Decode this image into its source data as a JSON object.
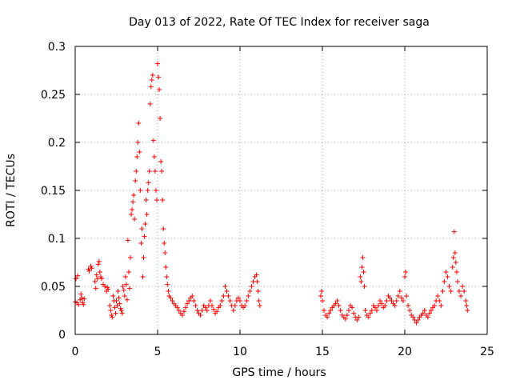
{
  "chart_data": {
    "type": "scatter",
    "title": "Day 013 of 2022, Rate Of TEC Index for receiver saga",
    "xlabel": "GPS time / hours",
    "ylabel": "ROTI / TECUs",
    "xlim": [
      0,
      25
    ],
    "ylim": [
      0,
      0.3
    ],
    "xticks": [
      0,
      5,
      10,
      15,
      20,
      25
    ],
    "xtick_labels": [
      "0",
      "5",
      "10",
      "15",
      "20",
      "25"
    ],
    "yticks": [
      0,
      0.05,
      0.1,
      0.15,
      0.2,
      0.25,
      0.3
    ],
    "ytick_labels": [
      "0",
      "0.05",
      "0.1",
      "0.15",
      "0.2",
      "0.25",
      "0.3"
    ],
    "grid": true,
    "marker": "plus",
    "color": "#ff0000",
    "series": [
      {
        "name": "ROTI",
        "points": [
          [
            0.0,
            0.034
          ],
          [
            0.05,
            0.058
          ],
          [
            0.1,
            0.033
          ],
          [
            0.15,
            0.061
          ],
          [
            0.2,
            0.031
          ],
          [
            0.3,
            0.036
          ],
          [
            0.35,
            0.042
          ],
          [
            0.4,
            0.038
          ],
          [
            0.45,
            0.033
          ],
          [
            0.5,
            0.031
          ],
          [
            0.55,
            0.037
          ],
          [
            0.8,
            0.068
          ],
          [
            0.85,
            0.066
          ],
          [
            0.95,
            0.071
          ],
          [
            1.0,
            0.069
          ],
          [
            1.2,
            0.055
          ],
          [
            1.25,
            0.048
          ],
          [
            1.3,
            0.062
          ],
          [
            1.35,
            0.058
          ],
          [
            1.4,
            0.073
          ],
          [
            1.45,
            0.076
          ],
          [
            1.5,
            0.065
          ],
          [
            1.55,
            0.06
          ],
          [
            1.6,
            0.058
          ],
          [
            1.7,
            0.052
          ],
          [
            1.8,
            0.05
          ],
          [
            1.9,
            0.045
          ],
          [
            1.95,
            0.049
          ],
          [
            2.0,
            0.047
          ],
          [
            2.1,
            0.03
          ],
          [
            2.15,
            0.025
          ],
          [
            2.2,
            0.02
          ],
          [
            2.25,
            0.018
          ],
          [
            2.3,
            0.04
          ],
          [
            2.35,
            0.035
          ],
          [
            2.4,
            0.028
          ],
          [
            2.45,
            0.022
          ],
          [
            2.5,
            0.035
          ],
          [
            2.55,
            0.03
          ],
          [
            2.6,
            0.045
          ],
          [
            2.65,
            0.038
          ],
          [
            2.7,
            0.032
          ],
          [
            2.75,
            0.027
          ],
          [
            2.8,
            0.025
          ],
          [
            2.85,
            0.022
          ],
          [
            2.9,
            0.05
          ],
          [
            2.95,
            0.046
          ],
          [
            3.0,
            0.04
          ],
          [
            3.05,
            0.06
          ],
          [
            3.1,
            0.052
          ],
          [
            3.15,
            0.036
          ],
          [
            3.2,
            0.098
          ],
          [
            3.25,
            0.065
          ],
          [
            3.3,
            0.048
          ],
          [
            3.35,
            0.08
          ],
          [
            3.4,
            0.125
          ],
          [
            3.45,
            0.13
          ],
          [
            3.5,
            0.138
          ],
          [
            3.55,
            0.145
          ],
          [
            3.6,
            0.12
          ],
          [
            3.65,
            0.16
          ],
          [
            3.7,
            0.17
          ],
          [
            3.75,
            0.185
          ],
          [
            3.8,
            0.2
          ],
          [
            3.85,
            0.22
          ],
          [
            3.9,
            0.19
          ],
          [
            3.95,
            0.15
          ],
          [
            4.0,
            0.095
          ],
          [
            4.05,
            0.11
          ],
          [
            4.1,
            0.06
          ],
          [
            4.15,
            0.08
          ],
          [
            4.2,
            0.102
          ],
          [
            4.25,
            0.115
          ],
          [
            4.3,
            0.14
          ],
          [
            4.35,
            0.125
          ],
          [
            4.4,
            0.15
          ],
          [
            4.45,
            0.158
          ],
          [
            4.5,
            0.17
          ],
          [
            4.55,
            0.24
          ],
          [
            4.6,
            0.258
          ],
          [
            4.65,
            0.265
          ],
          [
            4.7,
            0.27
          ],
          [
            4.75,
            0.202
          ],
          [
            4.8,
            0.185
          ],
          [
            4.85,
            0.17
          ],
          [
            4.9,
            0.15
          ],
          [
            4.95,
            0.14
          ],
          [
            5.0,
            0.282
          ],
          [
            5.05,
            0.268
          ],
          [
            5.1,
            0.255
          ],
          [
            5.15,
            0.225
          ],
          [
            5.2,
            0.18
          ],
          [
            5.25,
            0.17
          ],
          [
            5.3,
            0.14
          ],
          [
            5.35,
            0.11
          ],
          [
            5.4,
            0.095
          ],
          [
            5.45,
            0.085
          ],
          [
            5.5,
            0.07
          ],
          [
            5.55,
            0.06
          ],
          [
            5.6,
            0.052
          ],
          [
            5.65,
            0.045
          ],
          [
            5.7,
            0.04
          ],
          [
            5.8,
            0.038
          ],
          [
            5.9,
            0.035
          ],
          [
            6.0,
            0.032
          ],
          [
            6.1,
            0.03
          ],
          [
            6.2,
            0.028
          ],
          [
            6.3,
            0.025
          ],
          [
            6.4,
            0.022
          ],
          [
            6.5,
            0.02
          ],
          [
            6.6,
            0.024
          ],
          [
            6.7,
            0.028
          ],
          [
            6.8,
            0.032
          ],
          [
            6.9,
            0.035
          ],
          [
            7.0,
            0.038
          ],
          [
            7.1,
            0.04
          ],
          [
            7.2,
            0.035
          ],
          [
            7.3,
            0.03
          ],
          [
            7.4,
            0.025
          ],
          [
            7.5,
            0.022
          ],
          [
            7.6,
            0.02
          ],
          [
            7.7,
            0.025
          ],
          [
            7.8,
            0.03
          ],
          [
            7.9,
            0.028
          ],
          [
            8.0,
            0.025
          ],
          [
            8.1,
            0.03
          ],
          [
            8.2,
            0.035
          ],
          [
            8.3,
            0.03
          ],
          [
            8.4,
            0.026
          ],
          [
            8.5,
            0.022
          ],
          [
            8.6,
            0.024
          ],
          [
            8.7,
            0.028
          ],
          [
            8.8,
            0.03
          ],
          [
            8.9,
            0.035
          ],
          [
            9.0,
            0.04
          ],
          [
            9.1,
            0.05
          ],
          [
            9.2,
            0.045
          ],
          [
            9.3,
            0.04
          ],
          [
            9.4,
            0.035
          ],
          [
            9.5,
            0.03
          ],
          [
            9.6,
            0.025
          ],
          [
            9.7,
            0.03
          ],
          [
            9.8,
            0.035
          ],
          [
            9.9,
            0.038
          ],
          [
            10.0,
            0.035
          ],
          [
            10.1,
            0.03
          ],
          [
            10.2,
            0.028
          ],
          [
            10.3,
            0.03
          ],
          [
            10.4,
            0.035
          ],
          [
            10.5,
            0.04
          ],
          [
            10.6,
            0.045
          ],
          [
            10.7,
            0.05
          ],
          [
            10.8,
            0.055
          ],
          [
            10.9,
            0.06
          ],
          [
            11.0,
            0.062
          ],
          [
            11.05,
            0.055
          ],
          [
            11.1,
            0.045
          ],
          [
            11.15,
            0.035
          ],
          [
            11.2,
            0.03
          ],
          [
            14.9,
            0.04
          ],
          [
            14.95,
            0.045
          ],
          [
            15.0,
            0.035
          ],
          [
            15.1,
            0.025
          ],
          [
            15.2,
            0.02
          ],
          [
            15.3,
            0.018
          ],
          [
            15.4,
            0.022
          ],
          [
            15.5,
            0.025
          ],
          [
            15.6,
            0.028
          ],
          [
            15.7,
            0.03
          ],
          [
            15.8,
            0.032
          ],
          [
            15.9,
            0.035
          ],
          [
            16.0,
            0.03
          ],
          [
            16.1,
            0.025
          ],
          [
            16.2,
            0.02
          ],
          [
            16.3,
            0.018
          ],
          [
            16.4,
            0.016
          ],
          [
            16.5,
            0.02
          ],
          [
            16.6,
            0.025
          ],
          [
            16.7,
            0.03
          ],
          [
            16.8,
            0.028
          ],
          [
            16.9,
            0.022
          ],
          [
            17.0,
            0.018
          ],
          [
            17.1,
            0.015
          ],
          [
            17.2,
            0.018
          ],
          [
            17.3,
            0.06
          ],
          [
            17.35,
            0.055
          ],
          [
            17.4,
            0.07
          ],
          [
            17.45,
            0.08
          ],
          [
            17.5,
            0.065
          ],
          [
            17.55,
            0.05
          ],
          [
            17.6,
            0.025
          ],
          [
            17.7,
            0.02
          ],
          [
            17.8,
            0.018
          ],
          [
            17.9,
            0.022
          ],
          [
            18.0,
            0.025
          ],
          [
            18.1,
            0.03
          ],
          [
            18.2,
            0.028
          ],
          [
            18.3,
            0.025
          ],
          [
            18.4,
            0.03
          ],
          [
            18.5,
            0.035
          ],
          [
            18.6,
            0.032
          ],
          [
            18.7,
            0.028
          ],
          [
            18.8,
            0.03
          ],
          [
            18.9,
            0.035
          ],
          [
            19.0,
            0.04
          ],
          [
            19.1,
            0.038
          ],
          [
            19.2,
            0.035
          ],
          [
            19.3,
            0.032
          ],
          [
            19.4,
            0.03
          ],
          [
            19.5,
            0.035
          ],
          [
            19.6,
            0.04
          ],
          [
            19.7,
            0.045
          ],
          [
            19.8,
            0.038
          ],
          [
            19.9,
            0.035
          ],
          [
            20.0,
            0.06
          ],
          [
            20.05,
            0.065
          ],
          [
            20.1,
            0.04
          ],
          [
            20.2,
            0.03
          ],
          [
            20.3,
            0.025
          ],
          [
            20.4,
            0.02
          ],
          [
            20.5,
            0.018
          ],
          [
            20.6,
            0.015
          ],
          [
            20.7,
            0.012
          ],
          [
            20.8,
            0.015
          ],
          [
            20.9,
            0.018
          ],
          [
            21.0,
            0.02
          ],
          [
            21.1,
            0.022
          ],
          [
            21.2,
            0.025
          ],
          [
            21.3,
            0.02
          ],
          [
            21.4,
            0.018
          ],
          [
            21.5,
            0.022
          ],
          [
            21.6,
            0.025
          ],
          [
            21.7,
            0.028
          ],
          [
            21.8,
            0.03
          ],
          [
            21.9,
            0.035
          ],
          [
            22.0,
            0.04
          ],
          [
            22.1,
            0.035
          ],
          [
            22.2,
            0.03
          ],
          [
            22.3,
            0.045
          ],
          [
            22.4,
            0.055
          ],
          [
            22.5,
            0.065
          ],
          [
            22.6,
            0.06
          ],
          [
            22.7,
            0.05
          ],
          [
            22.8,
            0.045
          ],
          [
            22.9,
            0.07
          ],
          [
            22.95,
            0.08
          ],
          [
            23.0,
            0.107
          ],
          [
            23.05,
            0.085
          ],
          [
            23.1,
            0.075
          ],
          [
            23.15,
            0.065
          ],
          [
            23.2,
            0.055
          ],
          [
            23.3,
            0.045
          ],
          [
            23.4,
            0.04
          ],
          [
            23.5,
            0.05
          ],
          [
            23.6,
            0.045
          ],
          [
            23.7,
            0.035
          ],
          [
            23.75,
            0.03
          ],
          [
            23.8,
            0.025
          ]
        ]
      }
    ]
  }
}
